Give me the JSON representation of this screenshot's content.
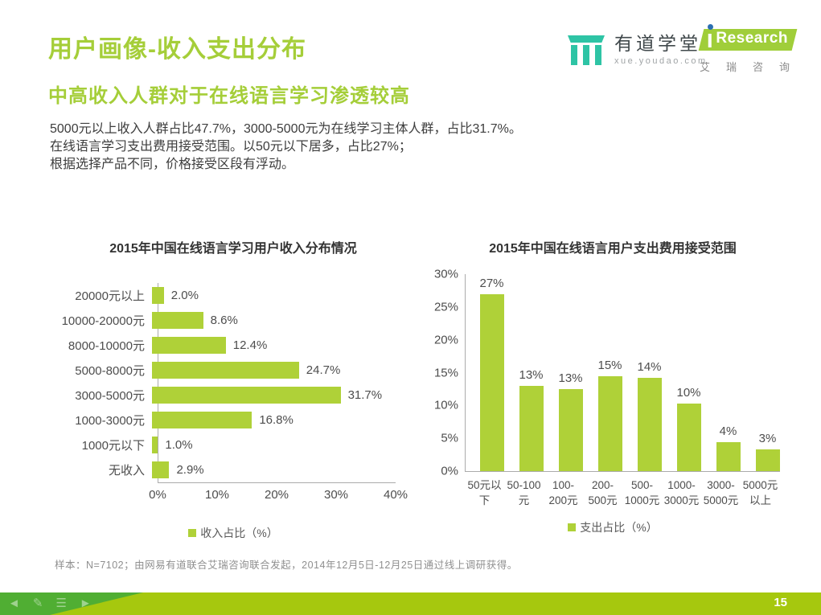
{
  "page": {
    "title": "用户画像-收入支出分布",
    "subtitle": "中高收入人群对于在线语言学习渗透较高",
    "body_lines": [
      "5000元以上收入人群占比47.7%，3000-5000元为在线学习主体人群，占比31.7%。",
      "在线语言学习支出费用接受范围。以50元以下居多，占比27%；",
      "根据选择产品不同，价格接受区段有浮动。"
    ],
    "footnote": "样本：N=7102；由网易有道联合艾瑞咨询联合发起，2014年12月5日-12月25日通过线上调研获得。",
    "page_number": "15"
  },
  "logos": {
    "youdao": {
      "name": "有道学堂",
      "url": "xue.youdao.com"
    },
    "iresearch": {
      "brand": "Research",
      "cn": [
        "艾",
        "瑞",
        "咨",
        "询"
      ]
    }
  },
  "colors": {
    "accent_green": "#A5CE39",
    "bar_green": "#AFD138",
    "youdao_teal": "#2EC4A5",
    "iresearch_blue_dot": "#2B6FB2",
    "footer_light": "#A6C80E",
    "footer_dark": "#50AE33"
  },
  "footer_icons": [
    "left-arrow",
    "pencil",
    "list",
    "right-arrow"
  ],
  "chart_data": [
    {
      "type": "bar",
      "orientation": "horizontal",
      "title": "2015年中国在线语言学习用户收入分布情况",
      "categories": [
        "20000元以上",
        "10000-20000元",
        "8000-10000元",
        "5000-8000元",
        "3000-5000元",
        "1000-3000元",
        "1000元以下",
        "无收入"
      ],
      "values": [
        2.0,
        8.6,
        12.4,
        24.7,
        31.7,
        16.8,
        1.0,
        2.9
      ],
      "value_labels": [
        "2.0%",
        "8.6%",
        "12.4%",
        "24.7%",
        "31.7%",
        "16.8%",
        "1.0%",
        "2.9%"
      ],
      "x_ticks": [
        "0%",
        "10%",
        "20%",
        "30%",
        "40%"
      ],
      "x_tick_values": [
        0,
        10,
        20,
        30,
        40
      ],
      "xlim": [
        0,
        40
      ],
      "grid": false,
      "legend": "收入占比（%）",
      "legend_position": "bottom",
      "bar_color": "#AFD138"
    },
    {
      "type": "bar",
      "orientation": "vertical",
      "title": "2015年中国在线语言用户支出费用接受范围",
      "categories": [
        "50元以下",
        "50-100元",
        "100-200元",
        "200-500元",
        "500-1000元",
        "1000-3000元",
        "3000-5000元",
        "5000元以上"
      ],
      "categories_wrapped": [
        "50元以\n下",
        "50-100\n元",
        "100-\n200元",
        "200-\n500元",
        "500-\n1000元",
        "1000-\n3000元",
        "3000-\n5000元",
        "5000元\n以上"
      ],
      "values": [
        27,
        13,
        13,
        15,
        14,
        10,
        4,
        3
      ],
      "value_labels": [
        "27%",
        "13%",
        "13%",
        "15%",
        "14%",
        "10%",
        "4%",
        "3%"
      ],
      "drawn_heights": [
        27,
        13,
        12.5,
        14.5,
        14.2,
        10.3,
        4.4,
        3.3
      ],
      "y_ticks": [
        "30%",
        "25%",
        "20%",
        "15%",
        "10%",
        "5%",
        "0%"
      ],
      "y_tick_values": [
        30,
        25,
        20,
        15,
        10,
        5,
        0
      ],
      "ylim": [
        0,
        30
      ],
      "grid": false,
      "legend": "支出占比（%）",
      "legend_position": "bottom",
      "bar_color": "#AFD138"
    }
  ]
}
